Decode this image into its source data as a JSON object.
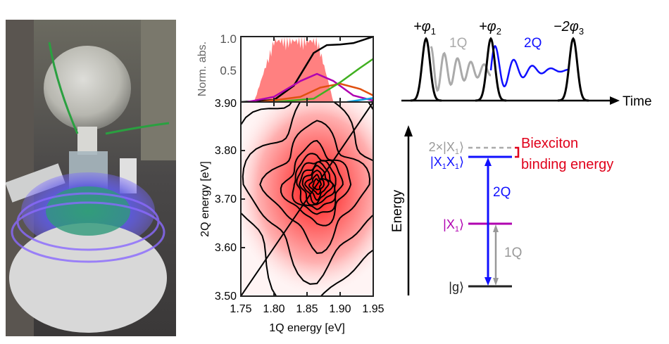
{
  "photo": {
    "description_icon": "reactor-flask-photo"
  },
  "chart_data": [
    {
      "type": "line",
      "ylabel": "Norm. abs.",
      "ylim": [
        0,
        1.0
      ],
      "yticks": [
        "1.0",
        "0.5"
      ],
      "xlim": [
        1.75,
        1.95
      ],
      "series": [
        {
          "color": "#000000",
          "x": [
            1.75,
            1.8,
            1.83,
            1.86,
            1.88,
            1.9,
            1.92,
            1.95
          ],
          "y": [
            0.0,
            0.03,
            0.25,
            0.75,
            0.87,
            0.88,
            0.9,
            1.0
          ]
        },
        {
          "color": "#b000b0",
          "x": [
            1.76,
            1.8,
            1.84,
            1.865,
            1.89,
            1.92,
            1.95
          ],
          "y": [
            0.0,
            0.08,
            0.32,
            0.43,
            0.32,
            0.1,
            0.02
          ]
        },
        {
          "color": "#e05010",
          "x": [
            1.78,
            1.84,
            1.87,
            1.9,
            1.93,
            1.95
          ],
          "y": [
            0.0,
            0.08,
            0.22,
            0.28,
            0.2,
            0.1
          ]
        },
        {
          "color": "#40b020",
          "x": [
            1.8,
            1.86,
            1.9,
            1.93,
            1.95
          ],
          "y": [
            0.0,
            0.05,
            0.3,
            0.52,
            0.66
          ]
        },
        {
          "color": "#10a0e0",
          "x": [
            1.91,
            1.95
          ],
          "y": [
            0.0,
            0.06
          ]
        }
      ],
      "fill_color": "#ff8080",
      "fill_range": [
        1.77,
        1.89
      ]
    },
    {
      "type": "heatmap",
      "xlabel": "1Q energy [eV]",
      "ylabel": "2Q energy [eV]",
      "xlim": [
        1.75,
        1.95
      ],
      "ylim": [
        3.5,
        3.9
      ],
      "xticks": [
        "1.75",
        "1.80",
        "1.85",
        "1.90",
        "1.95"
      ],
      "yticks": [
        "3.50",
        "3.60",
        "3.70",
        "3.80",
        "3.90"
      ],
      "peak": {
        "x": 1.865,
        "y": 3.73
      },
      "diagonal": {
        "slope": 2
      },
      "colormap": [
        "#ffffff",
        "#ff0000"
      ]
    }
  ],
  "pulses": {
    "labels": [
      "+φ",
      "1",
      "+φ",
      "2",
      "−2φ",
      "3"
    ],
    "phi1_sign": "+φ",
    "phi1_sub": "1",
    "phi2_sign": "+φ",
    "phi2_sub": "2",
    "phi3_sign": "−2φ",
    "phi3_sub": "3",
    "coherence_1q": "1Q",
    "coherence_2q": "2Q",
    "time_label": "Time"
  },
  "levels": {
    "axis_label": "Energy",
    "double_x1": "2×|X",
    "double_x1_sub": "1",
    "biexciton": "|X",
    "biexciton_mid": "X",
    "biexciton_sub": "1",
    "x1": "|X",
    "x1_sub": "1",
    "ground": "|g",
    "ket": "⟩",
    "transition_2q": "2Q",
    "transition_1q": "1Q",
    "binding_line1": "Biexciton",
    "binding_line2": "binding energy",
    "colors": {
      "grey": "#9a9a9a",
      "blue": "#1010ff",
      "magenta": "#b000b0",
      "red": "#e0001a"
    }
  }
}
